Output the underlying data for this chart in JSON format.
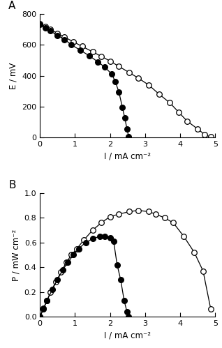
{
  "panel_A_title": "A",
  "panel_B_title": "B",
  "xlabel": "I / mA cm⁻²",
  "ylabel_A": "E / mV",
  "ylabel_B": "P / mW cm⁻²",
  "xlim_A": [
    0,
    5
  ],
  "ylim_A": [
    0,
    800
  ],
  "xlim_B": [
    0,
    5
  ],
  "ylim_B": [
    0,
    1.0
  ],
  "xticks_A": [
    0,
    1,
    2,
    3,
    4,
    5
  ],
  "yticks_A": [
    0,
    200,
    400,
    600,
    800
  ],
  "xticks_B": [
    0,
    1,
    2,
    3,
    4,
    5
  ],
  "yticks_B": [
    0.0,
    0.2,
    0.4,
    0.6,
    0.8,
    1.0
  ],
  "A_filled_I": [
    0.0,
    0.15,
    0.3,
    0.5,
    0.7,
    0.9,
    1.15,
    1.4,
    1.65,
    1.85,
    2.05,
    2.15,
    2.25,
    2.35,
    2.42,
    2.48,
    2.53
  ],
  "A_filled_E": [
    730,
    710,
    690,
    660,
    635,
    600,
    565,
    530,
    490,
    455,
    410,
    360,
    295,
    195,
    125,
    55,
    5
  ],
  "A_open_I": [
    0.0,
    0.15,
    0.3,
    0.5,
    0.7,
    0.95,
    1.2,
    1.5,
    1.75,
    2.0,
    2.25,
    2.55,
    2.8,
    3.1,
    3.4,
    3.7,
    3.95,
    4.2,
    4.5,
    4.7,
    4.87
  ],
  "A_open_E": [
    735,
    718,
    700,
    675,
    650,
    620,
    590,
    555,
    525,
    495,
    460,
    420,
    385,
    340,
    280,
    225,
    165,
    105,
    55,
    18,
    3
  ],
  "B_filled_I": [
    0.0,
    0.1,
    0.2,
    0.35,
    0.5,
    0.65,
    0.8,
    0.95,
    1.1,
    1.3,
    1.5,
    1.7,
    1.85,
    2.0,
    2.1,
    2.2,
    2.3,
    2.4,
    2.48,
    2.53
  ],
  "B_filled_P": [
    0.0,
    0.06,
    0.13,
    0.22,
    0.3,
    0.38,
    0.44,
    0.5,
    0.55,
    0.6,
    0.63,
    0.65,
    0.65,
    0.64,
    0.61,
    0.42,
    0.3,
    0.13,
    0.04,
    0.0
  ],
  "B_open_I": [
    0.0,
    0.1,
    0.2,
    0.3,
    0.45,
    0.6,
    0.75,
    0.9,
    1.05,
    1.25,
    1.5,
    1.75,
    2.0,
    2.25,
    2.55,
    2.8,
    3.1,
    3.3,
    3.55,
    3.8,
    4.1,
    4.4,
    4.65,
    4.87
  ],
  "B_open_P": [
    0.0,
    0.07,
    0.13,
    0.2,
    0.28,
    0.36,
    0.44,
    0.5,
    0.55,
    0.62,
    0.7,
    0.76,
    0.81,
    0.83,
    0.85,
    0.86,
    0.85,
    0.83,
    0.8,
    0.76,
    0.65,
    0.52,
    0.37,
    0.06
  ],
  "marker_size": 5.5,
  "line_width": 0.9,
  "bg_color": "#ffffff",
  "line_color": "#000000"
}
